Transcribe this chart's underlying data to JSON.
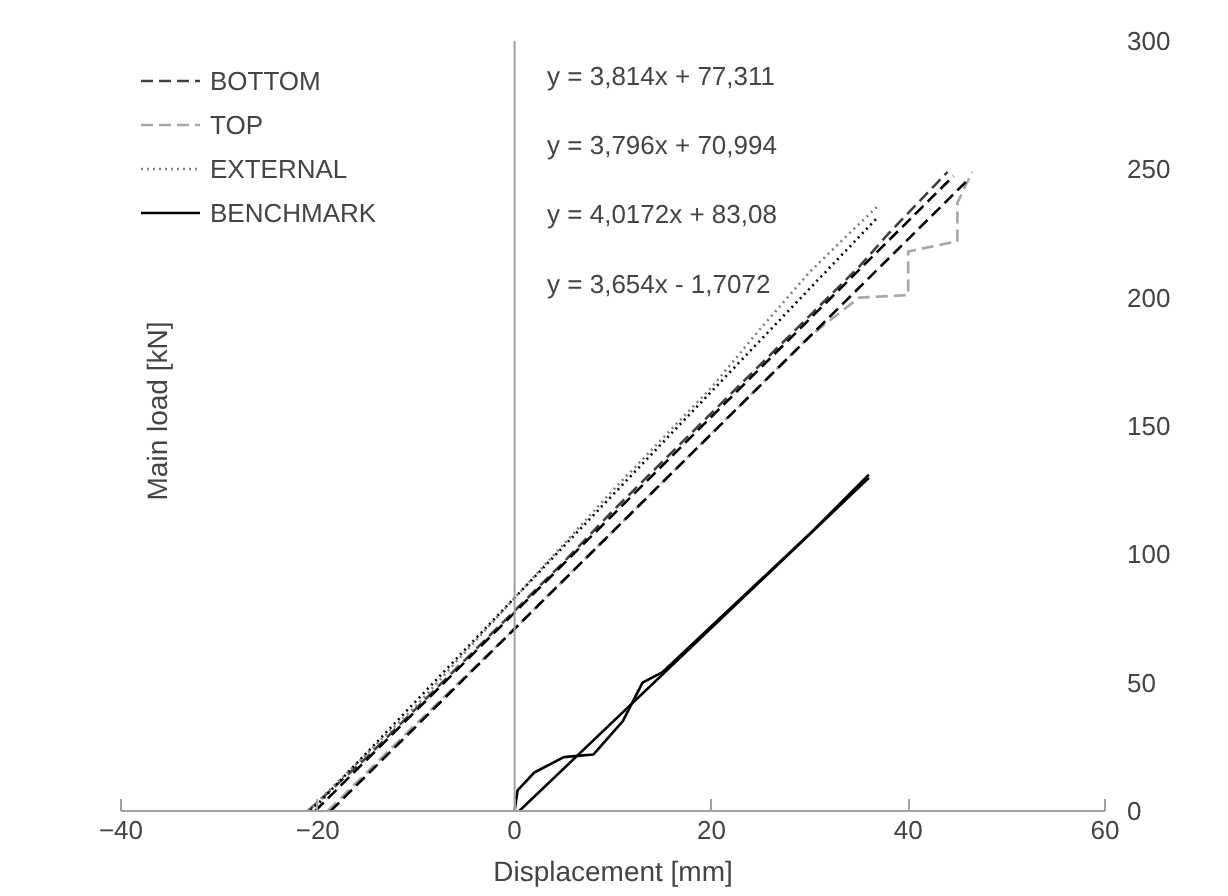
{
  "chart_data": {
    "type": "line",
    "xlabel": "Displacement [mm]",
    "ylabel": "Main load [kN]",
    "xlim": [
      -40,
      60
    ],
    "xticks": [
      -40,
      -20,
      0,
      20,
      40,
      60
    ],
    "ylim": [
      0,
      300
    ],
    "yticks": [
      0,
      50,
      100,
      150,
      200,
      250,
      300
    ],
    "grid": false,
    "legend": "top left",
    "marker": "none",
    "annotations": [
      "y = 3,814x + 77,311",
      "y = 3,796x + 70,994",
      "y = 4,0172x + 83,08",
      "y = 3,654x - 1,7072"
    ],
    "ref_lines": [
      {
        "axis": "x",
        "value": 0,
        "color": "#a0a0a0"
      }
    ],
    "series": [
      {
        "name": "BOTTOM",
        "color": "#404040",
        "line_style": "dashed",
        "x": [
          -21,
          -15,
          -10,
          -5,
          0,
          5,
          10,
          15,
          20,
          25,
          30,
          35,
          38,
          41,
          44
        ],
        "values": [
          0,
          21,
          40,
          59,
          78,
          97,
          117,
          136,
          155,
          174,
          193,
          212,
          225,
          237,
          249
        ]
      },
      {
        "name": "TOP",
        "color": "#a6a6a6",
        "line_style": "dashed",
        "x": [
          -19,
          -10,
          0,
          10,
          20,
          30,
          35,
          40,
          40,
          45,
          45,
          46.5
        ],
        "values": [
          0,
          34,
          71,
          109,
          147,
          185,
          200,
          201,
          218,
          222,
          237,
          249
        ]
      },
      {
        "name": "EXTERNAL",
        "color": "#808080",
        "line_style": "dotted",
        "x": [
          -21,
          -10,
          0,
          10,
          20,
          25,
          30,
          34,
          37
        ],
        "values": [
          0,
          41,
          83,
          125,
          165,
          188,
          210,
          225,
          236
        ]
      },
      {
        "name": "BENCHMARK",
        "color": "#000000",
        "line_style": "solid",
        "x": [
          0,
          0.3,
          2,
          5,
          8,
          11,
          13,
          15,
          20,
          25,
          30,
          36
        ],
        "values": [
          0,
          8,
          15,
          21,
          22,
          35,
          50,
          54,
          72,
          90,
          108,
          131
        ]
      },
      {
        "color": "#000000",
        "line_style": "dashed",
        "x": [
          -20.27,
          44.6
        ],
        "values": [
          0,
          247.4
        ]
      },
      {
        "color": "#000000",
        "line_style": "dashed",
        "x": [
          -18.7,
          46
        ],
        "values": [
          0,
          245.6
        ]
      },
      {
        "color": "#000000",
        "line_style": "dotted",
        "x": [
          -20.68,
          37
        ],
        "values": [
          0,
          231.7
        ]
      },
      {
        "color": "#000000",
        "line_style": "solid",
        "x": [
          0.47,
          36
        ],
        "values": [
          0,
          129.8
        ]
      }
    ]
  }
}
